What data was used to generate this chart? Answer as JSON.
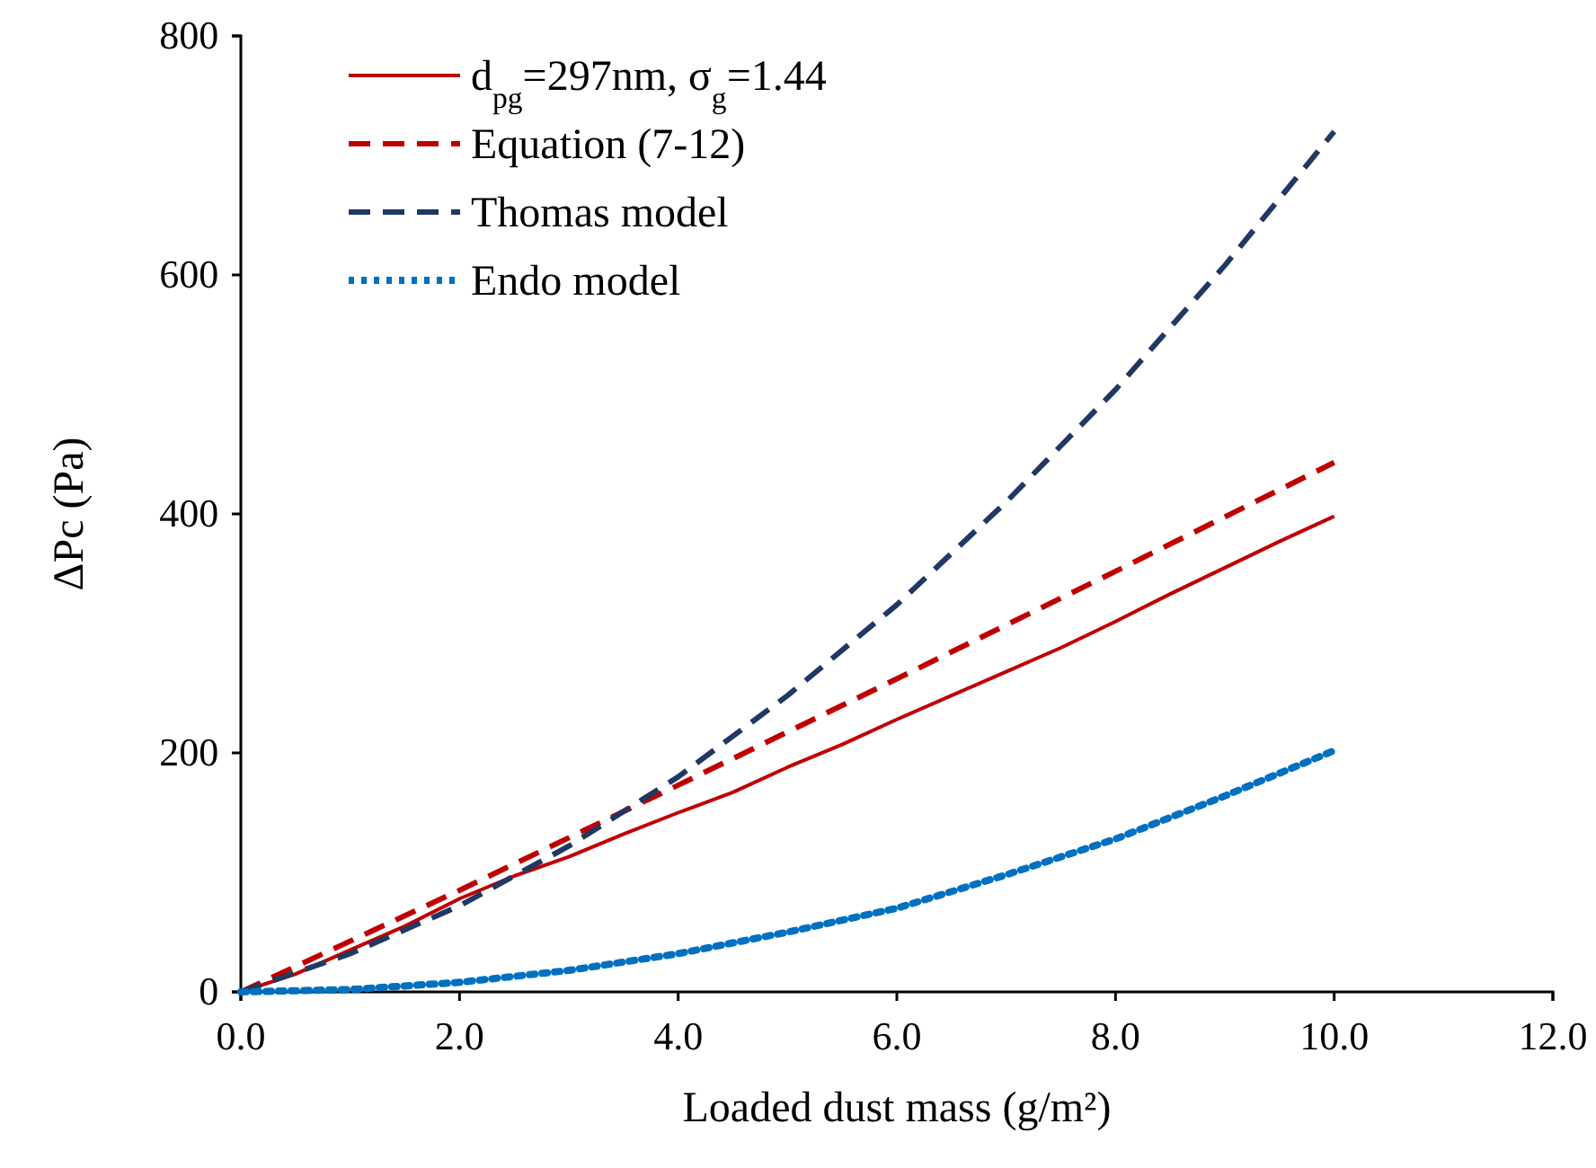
{
  "chart_data": {
    "type": "line",
    "xlabel": "Loaded dust mass (g/m²)",
    "ylabel": "ΔPc (Pa)",
    "xlim": [
      0,
      12
    ],
    "ylim": [
      0,
      800
    ],
    "xticks": [
      {
        "value": 0,
        "label": "0.0"
      },
      {
        "value": 2,
        "label": "2.0"
      },
      {
        "value": 4,
        "label": "4.0"
      },
      {
        "value": 6,
        "label": "6.0"
      },
      {
        "value": 8,
        "label": "8.0"
      },
      {
        "value": 10,
        "label": "10.0"
      },
      {
        "value": 12,
        "label": "12.0"
      }
    ],
    "yticks": [
      0,
      200,
      400,
      600,
      800
    ],
    "legend": "top left",
    "series": [
      {
        "name": "d$_{pg}$=297nm,  σ$_{g}$=1.44",
        "color": "#c00000",
        "line_style": "solid",
        "x": [
          0,
          0.5,
          1,
          1.5,
          2,
          2.5,
          3,
          3.5,
          4,
          4.5,
          5,
          5.5,
          6,
          6.5,
          7,
          7.5,
          8,
          8.5,
          9,
          9.5,
          10
        ],
        "values": [
          0,
          15,
          35,
          55,
          78,
          97,
          113,
          132,
          150,
          167,
          188,
          207,
          228,
          248,
          268,
          288,
          310,
          333,
          355,
          377,
          398
        ]
      },
      {
        "name": "Equation (7-12)",
        "color": "#c00000",
        "line_style": "dashed",
        "x": [
          0,
          2,
          4,
          6,
          8,
          10
        ],
        "values": [
          0,
          85,
          173,
          262,
          352,
          443
        ]
      },
      {
        "name": "Thomas model",
        "color": "#1f3864",
        "line_style": "dashed",
        "x": [
          0,
          1,
          2,
          3,
          4,
          5,
          6,
          7,
          8,
          9,
          10
        ],
        "values": [
          0,
          32,
          72,
          122,
          180,
          248,
          324,
          410,
          504,
          608,
          720
        ]
      },
      {
        "name": "Endo model",
        "color": "#0070c0",
        "line_style": "dotted",
        "x": [
          0,
          1,
          2,
          3,
          4,
          5,
          6,
          7,
          8,
          9,
          10
        ],
        "values": [
          0,
          2,
          8,
          18,
          32,
          50,
          70,
          98,
          128,
          164,
          202
        ]
      }
    ]
  }
}
